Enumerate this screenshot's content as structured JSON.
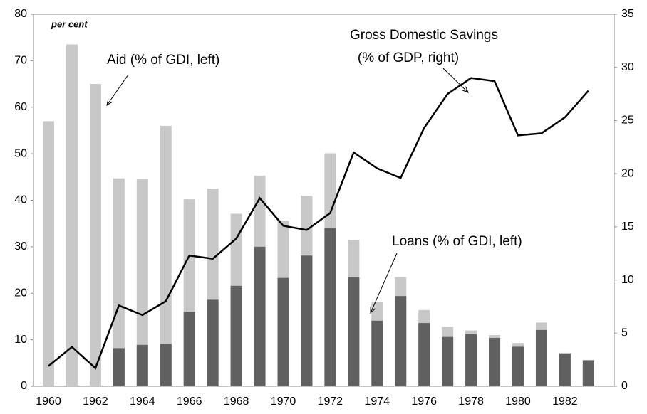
{
  "chart_data": {
    "type": "bar_line",
    "annotations": [
      "per cent",
      "Aid (% of GDI, left)",
      "Gross Domestic Savings",
      "(% of GDP, right)",
      "Loans (% of GDI, left)"
    ],
    "categories": [
      "1960",
      null,
      "1962",
      null,
      "1964",
      null,
      "1966",
      null,
      "1968",
      null,
      "1970",
      null,
      "1972",
      null,
      "1974",
      null,
      "1976",
      null,
      "1978",
      null,
      "1980",
      null,
      "1982",
      null
    ],
    "series": [
      {
        "name": "Aid (% of GDI, left)",
        "color": "#c8c8c8",
        "axis": "y",
        "values": [
          57,
          73.5,
          65,
          44.7,
          44.5,
          56,
          40.2,
          42.5,
          37.1,
          45.3,
          35.6,
          41,
          50.1,
          31.5,
          18.2,
          23.5,
          16.4,
          12.8,
          12,
          11,
          9.3,
          13.7,
          7.2,
          5.6
        ]
      },
      {
        "name": "Loans (% of GDI, left)",
        "color": "#606060",
        "axis": "y",
        "values": [
          null,
          null,
          null,
          8.2,
          8.9,
          9.1,
          16,
          18.6,
          21.6,
          30,
          23.3,
          28.1,
          34,
          23.4,
          14.1,
          19.4,
          13.6,
          10.6,
          11.2,
          10.4,
          8.5,
          12.1,
          7,
          5.6
        ]
      },
      {
        "name": "Gross Domestic Savings (% of GDP, right)",
        "color": "#000000",
        "axis": "y2",
        "values": [
          1.9,
          3.7,
          1.7,
          7.6,
          6.7,
          8.0,
          12.3,
          12.0,
          13.9,
          17.7,
          15.1,
          14.7,
          16.3,
          22.0,
          20.5,
          19.6,
          24.3,
          27.5,
          29.0,
          28.7,
          23.6,
          23.8,
          25.3,
          27.8
        ]
      }
    ],
    "ylim": [
      0,
      80
    ],
    "yticks": [
      0,
      10,
      20,
      30,
      40,
      50,
      60,
      70,
      80
    ],
    "y2lim": [
      0,
      35
    ],
    "y2ticks": [
      0,
      5,
      10,
      15,
      20,
      25,
      30,
      35
    ]
  }
}
